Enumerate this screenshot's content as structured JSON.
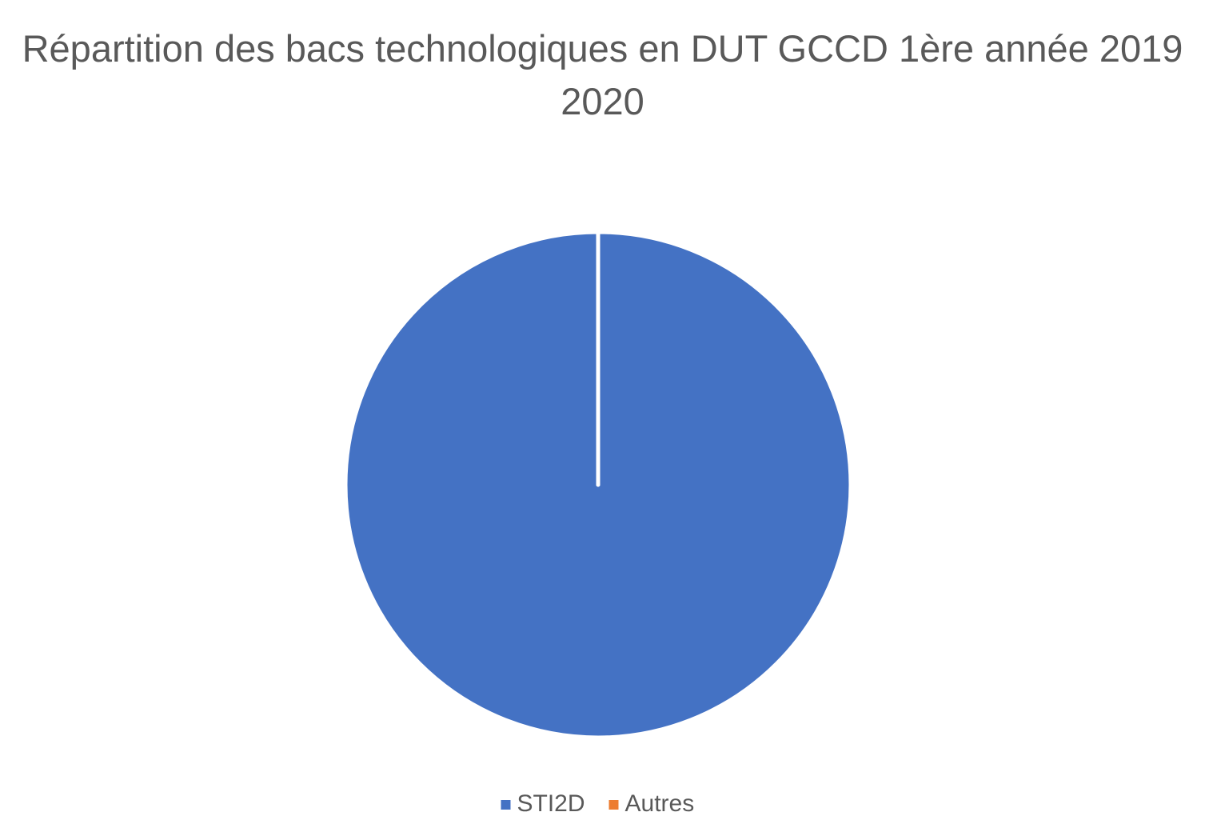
{
  "chart_data": {
    "type": "pie",
    "title": "Répartition des bacs technologiques en DUT GCCD 1ère année 2019 2020",
    "categories": [
      "STI2D",
      "Autres"
    ],
    "values": [
      100,
      0
    ],
    "colors": [
      "#4472c4",
      "#ed7d31"
    ],
    "legend": "bottom"
  }
}
